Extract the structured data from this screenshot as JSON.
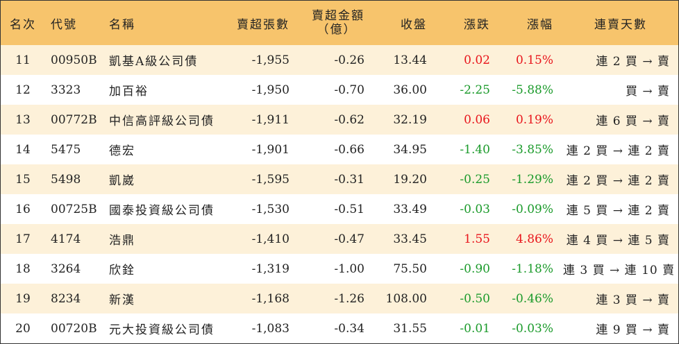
{
  "headers": {
    "rank": "名次",
    "code": "代號",
    "name": "名稱",
    "sell_volume": "賣超張數",
    "sell_amount_line1": "賣超金額",
    "sell_amount_line2": "（億）",
    "close": "收盤",
    "change": "漲跌",
    "change_pct": "漲幅",
    "consecutive": "連賣天數"
  },
  "colors": {
    "header_bg": "#f7c46c",
    "stripe_bg": "#fdf1d9",
    "up": "#e8141b",
    "down": "#1a9a2a"
  },
  "rows": [
    {
      "rank": "11",
      "code": "00950B",
      "name": "凱基A級公司債",
      "sell_volume": "-1,955",
      "sell_amount": "-0.26",
      "close": "13.44",
      "change": "0.02",
      "change_pct": "0.15%",
      "trend": "up",
      "consecutive": "連 2 買 → 賣"
    },
    {
      "rank": "12",
      "code": "3323",
      "name": "加百裕",
      "sell_volume": "-1,950",
      "sell_amount": "-0.70",
      "close": "36.00",
      "change": "-2.25",
      "change_pct": "-5.88%",
      "trend": "down",
      "consecutive": "買 → 賣"
    },
    {
      "rank": "13",
      "code": "00772B",
      "name": "中信高評級公司債",
      "sell_volume": "-1,911",
      "sell_amount": "-0.62",
      "close": "32.19",
      "change": "0.06",
      "change_pct": "0.19%",
      "trend": "up",
      "consecutive": "連 6 買 → 賣"
    },
    {
      "rank": "14",
      "code": "5475",
      "name": "德宏",
      "sell_volume": "-1,901",
      "sell_amount": "-0.66",
      "close": "34.95",
      "change": "-1.40",
      "change_pct": "-3.85%",
      "trend": "down",
      "consecutive": "連 2 買 → 連 2 賣"
    },
    {
      "rank": "15",
      "code": "5498",
      "name": "凱崴",
      "sell_volume": "-1,595",
      "sell_amount": "-0.31",
      "close": "19.20",
      "change": "-0.25",
      "change_pct": "-1.29%",
      "trend": "down",
      "consecutive": "連 2 買 → 連 2 賣"
    },
    {
      "rank": "16",
      "code": "00725B",
      "name": "國泰投資級公司債",
      "sell_volume": "-1,530",
      "sell_amount": "-0.51",
      "close": "33.49",
      "change": "-0.03",
      "change_pct": "-0.09%",
      "trend": "down",
      "consecutive": "連 5 買 → 連 2 賣"
    },
    {
      "rank": "17",
      "code": "4174",
      "name": "浩鼎",
      "sell_volume": "-1,410",
      "sell_amount": "-0.47",
      "close": "33.45",
      "change": "1.55",
      "change_pct": "4.86%",
      "trend": "up",
      "consecutive": "連 4 買 → 連 5 賣"
    },
    {
      "rank": "18",
      "code": "3264",
      "name": "欣銓",
      "sell_volume": "-1,319",
      "sell_amount": "-1.00",
      "close": "75.50",
      "change": "-0.90",
      "change_pct": "-1.18%",
      "trend": "down",
      "consecutive": "連 3 買 → 連 10 賣"
    },
    {
      "rank": "19",
      "code": "8234",
      "name": "新漢",
      "sell_volume": "-1,168",
      "sell_amount": "-1.26",
      "close": "108.00",
      "change": "-0.50",
      "change_pct": "-0.46%",
      "trend": "down",
      "consecutive": "連 3 買 → 賣"
    },
    {
      "rank": "20",
      "code": "00720B",
      "name": "元大投資級公司債",
      "sell_volume": "-1,083",
      "sell_amount": "-0.34",
      "close": "31.55",
      "change": "-0.01",
      "change_pct": "-0.03%",
      "trend": "down",
      "consecutive": "連 9 買 → 賣"
    }
  ]
}
